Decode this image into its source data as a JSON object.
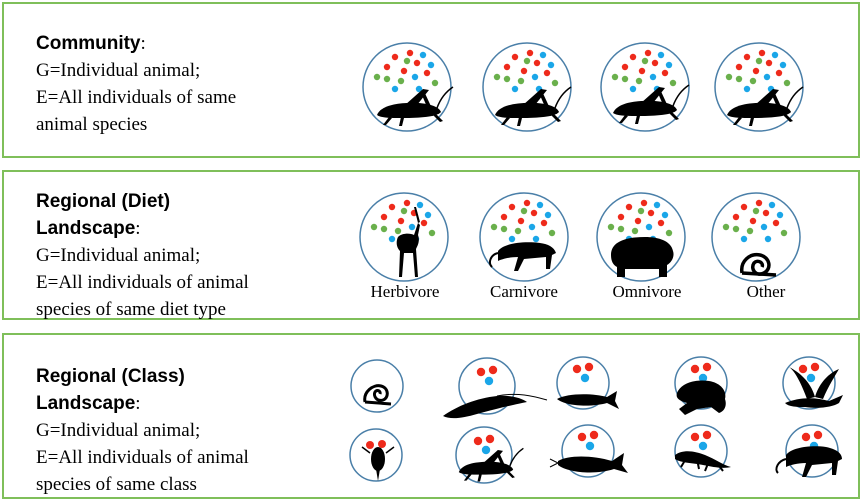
{
  "community": {
    "title": "Community",
    "lines": [
      "G=Individual animal;",
      "E=All individuals of same",
      "animal species"
    ]
  },
  "diet": {
    "title_lines": [
      "Regional (Diet)",
      "Landscape"
    ],
    "lines": [
      "G=Individual animal;",
      "E=All individuals of animal",
      "species of same diet type"
    ],
    "groups": [
      "Herbivore",
      "Carnivore",
      "Omnivore",
      "Other"
    ]
  },
  "class": {
    "title_lines": [
      "Regional (Class)",
      "Landscape"
    ],
    "lines": [
      "G=Individual animal;",
      "E=All individuals of animal",
      "species of same class"
    ]
  },
  "colors": {
    "border": "#7fbf5a",
    "circle": "#4a7fa8",
    "dot_red": "#ee2a1b",
    "dot_green": "#6ab04c",
    "dot_blue": "#1aa6e8",
    "silhouette": "#000000"
  }
}
